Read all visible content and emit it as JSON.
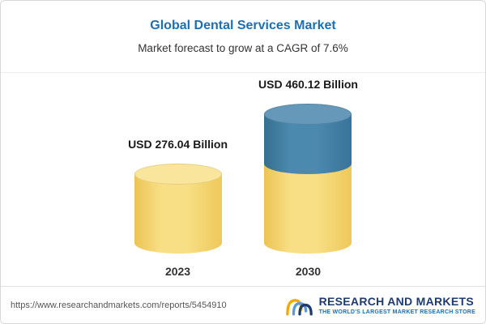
{
  "chart_data": {
    "type": "bar",
    "bar_style": "cylinder-3d",
    "title": "Global Dental Services Market",
    "subtitle": "Market forecast to grow at a CAGR of 7.6%",
    "categories": [
      "2023",
      "2030"
    ],
    "values": [
      276.04,
      460.12
    ],
    "value_labels": [
      "USD 276.04 Billion",
      "USD 460.12 Billion"
    ],
    "unit": "USD Billion",
    "cagr": "7.6%",
    "legend": "none",
    "grid": "off",
    "colors": {
      "title": "#1B6FB5",
      "bar_yellow": "#F6D56E",
      "bar_blue": "#3E7CA6"
    }
  },
  "footer": {
    "url": "https://www.researchandmarkets.com/reports/5454910",
    "logo_name": "RESEARCH AND MARKETS",
    "logo_tagline": "THE WORLD'S LARGEST MARKET RESEARCH STORE"
  }
}
